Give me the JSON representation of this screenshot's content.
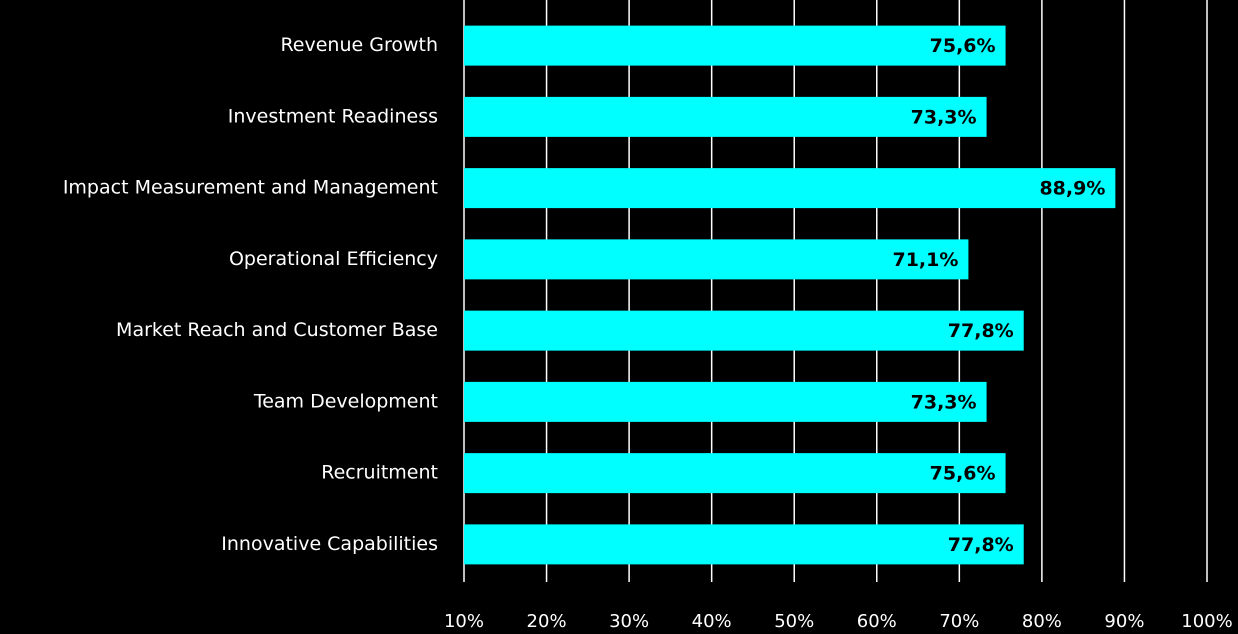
{
  "chart_data": {
    "type": "bar",
    "categories": [
      "Revenue Growth",
      "Investment Readiness",
      "Impact Measurement and Management",
      "Operational Efficiency",
      "Market Reach and Customer Base",
      "Team Development",
      "Recruitment",
      "Innovative Capabilities"
    ],
    "values": [
      75.6,
      73.3,
      88.9,
      71.1,
      77.8,
      73.3,
      75.6,
      77.8
    ],
    "value_labels": [
      "75,6%",
      "73,3%",
      "88,9%",
      "71,1%",
      "77,8%",
      "73,3%",
      "75,6%",
      "77,8%"
    ],
    "color": "#00ffff",
    "xlim": [
      10,
      100
    ],
    "xticks": [
      {
        "value": 10,
        "label": "10%"
      },
      {
        "value": 20,
        "label": "20%"
      },
      {
        "value": 30,
        "label": "30%"
      },
      {
        "value": 40,
        "label": "40%"
      },
      {
        "value": 50,
        "label": "50%"
      },
      {
        "value": 60,
        "label": "60%"
      },
      {
        "value": 70,
        "label": "70%"
      },
      {
        "value": 80,
        "label": "80%"
      },
      {
        "value": 90,
        "label": "90%"
      },
      {
        "value": 100,
        "label": "100%"
      }
    ],
    "grid": true
  }
}
